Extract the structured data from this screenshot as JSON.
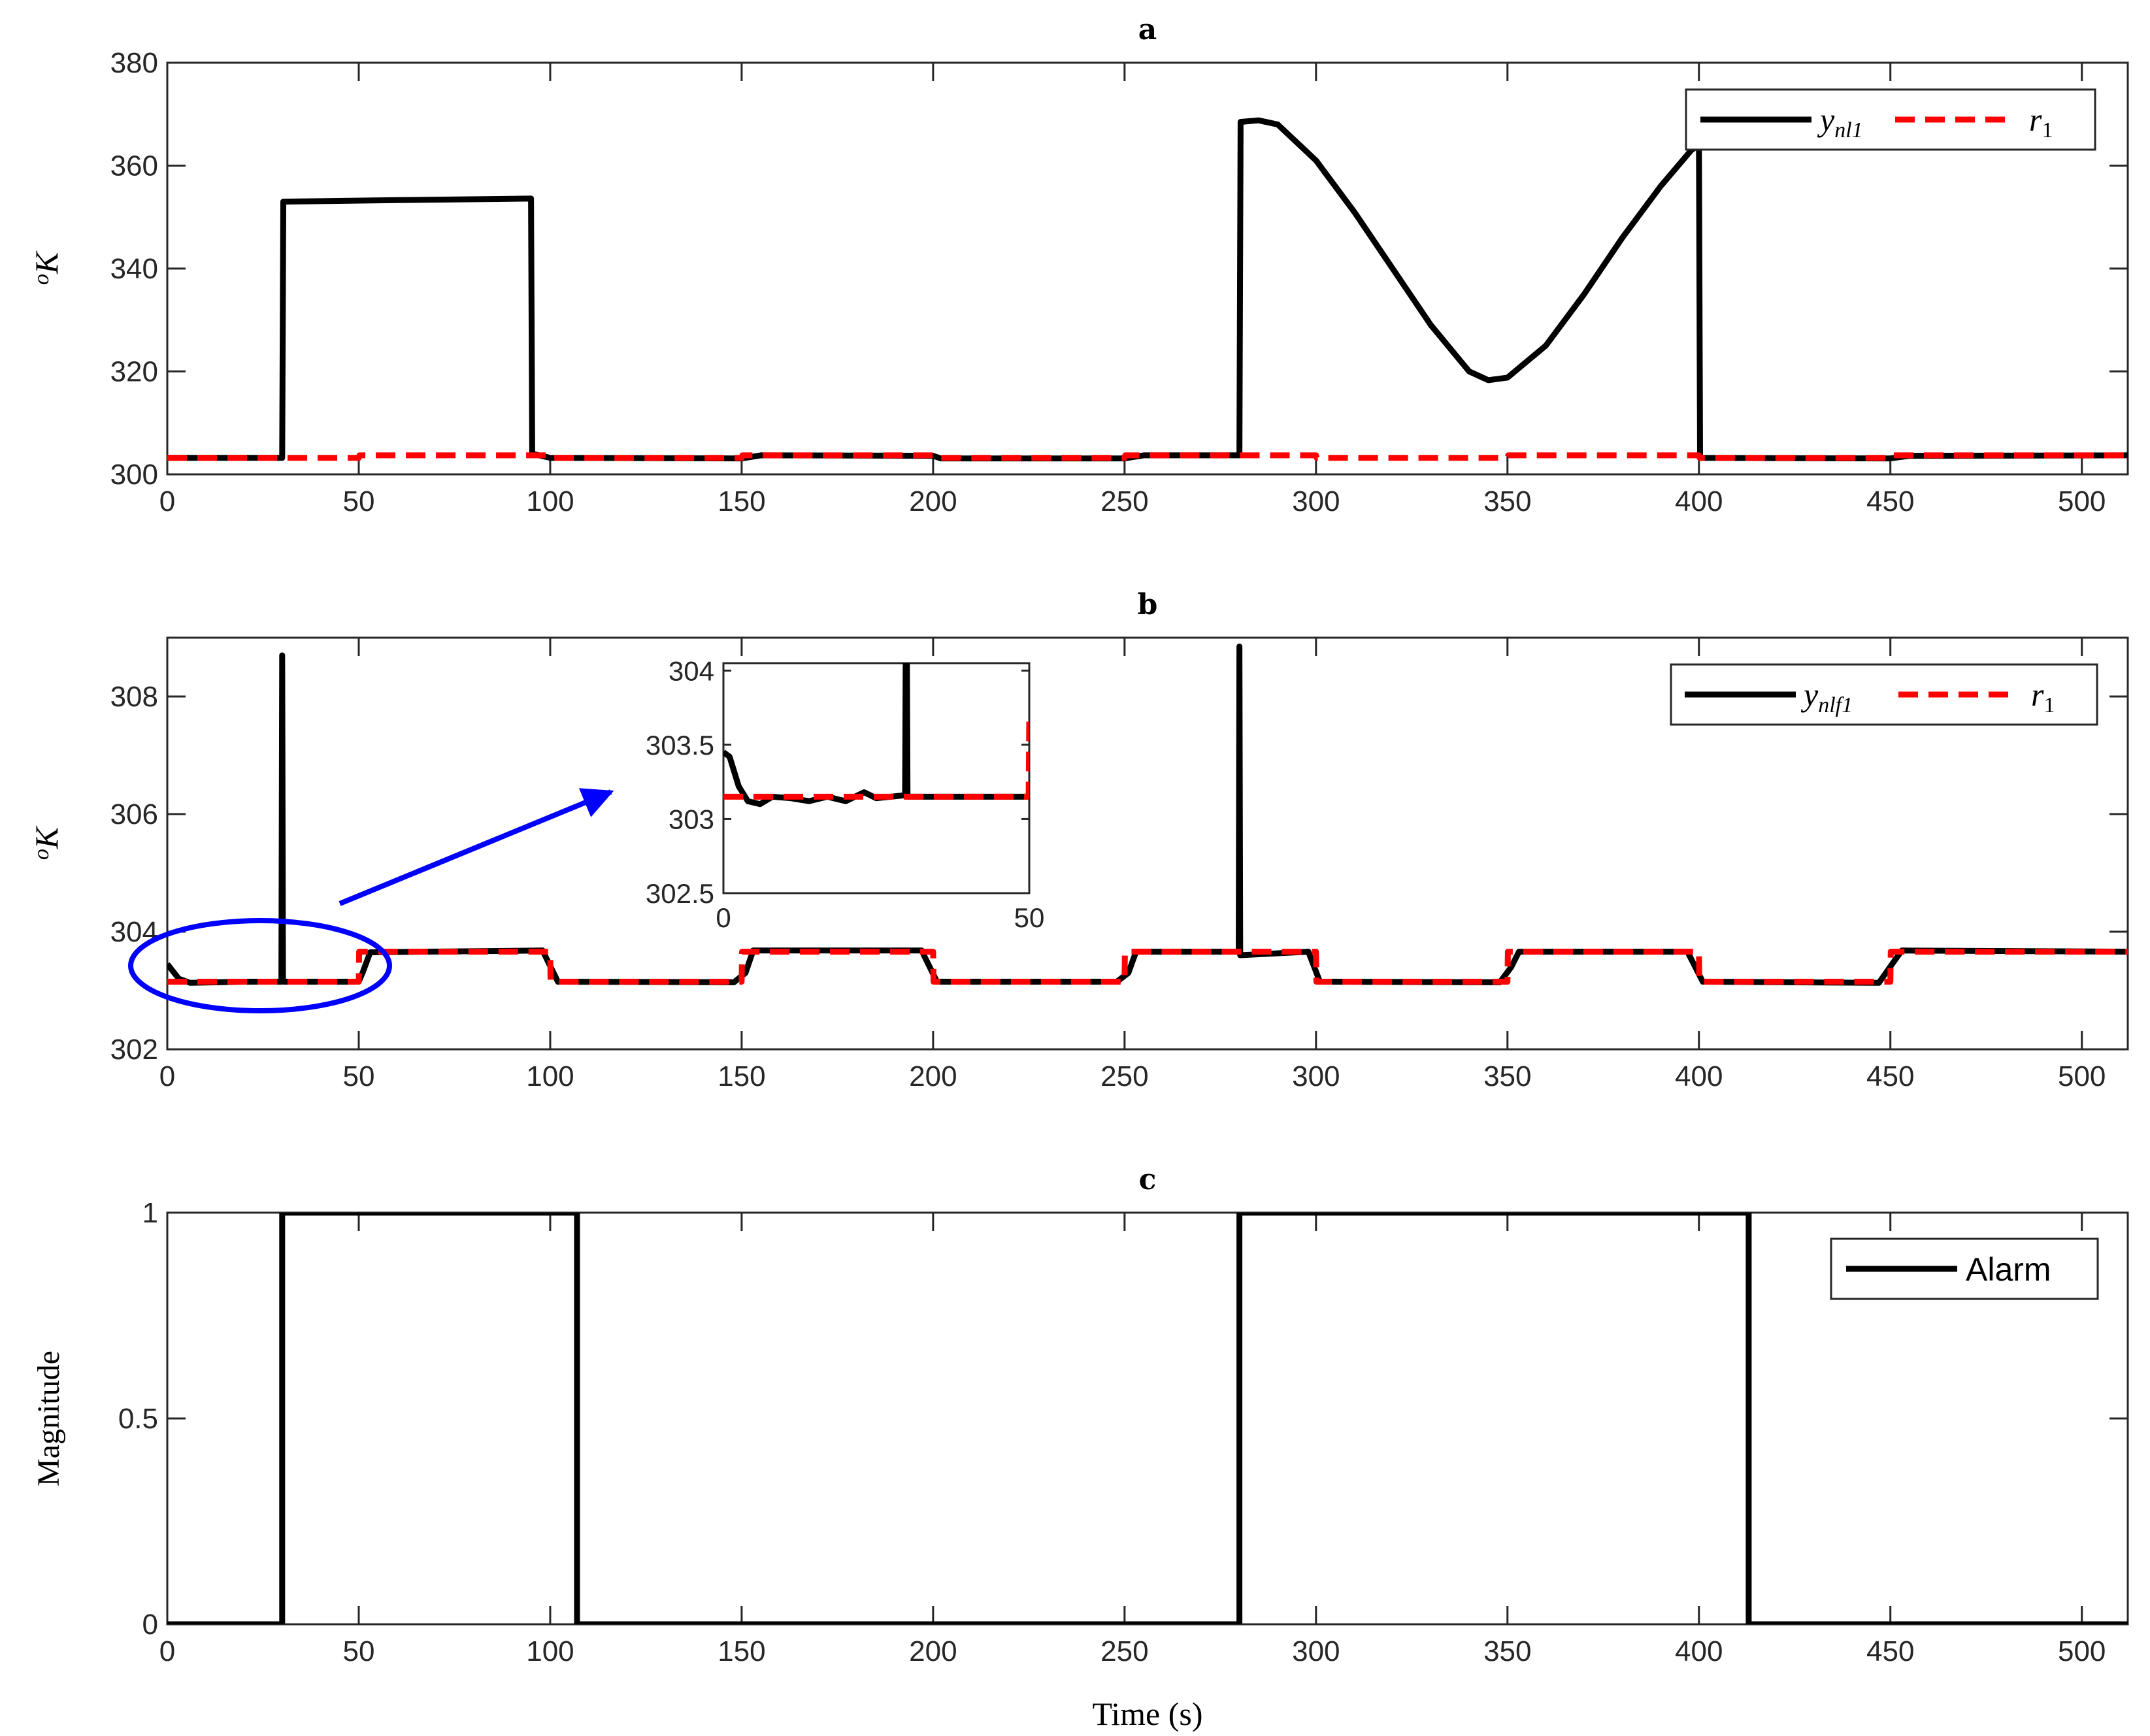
{
  "chart_data": [
    {
      "type": "line",
      "title": "a",
      "xlabel": "",
      "ylabel": "oK",
      "xlim": [
        0,
        512
      ],
      "ylim": [
        300,
        380
      ],
      "xticks": [
        "0",
        "50",
        "100",
        "150",
        "200",
        "250",
        "300",
        "350",
        "400",
        "450",
        "500"
      ],
      "yticks": [
        "300",
        "320",
        "340",
        "360",
        "380"
      ],
      "legend_position": "top-right",
      "series": [
        {
          "name": "y_nl1",
          "color": "#000000",
          "style": "solid",
          "points": [
            [
              0,
              303.2
            ],
            [
              30,
              303.2
            ],
            [
              30.3,
              353
            ],
            [
              60,
              353.3
            ],
            [
              95,
              353.6
            ],
            [
              95.3,
              304
            ],
            [
              100,
              303.2
            ],
            [
              150,
              303.1
            ],
            [
              155,
              303.7
            ],
            [
              200,
              303.6
            ],
            [
              202,
              303.1
            ],
            [
              250,
              303.1
            ],
            [
              255,
              303.7
            ],
            [
              280,
              303.7
            ],
            [
              280.3,
              368.5
            ],
            [
              285,
              368.8
            ],
            [
              290,
              368
            ],
            [
              300,
              361
            ],
            [
              310,
              351
            ],
            [
              320,
              340
            ],
            [
              330,
              329
            ],
            [
              340,
              320
            ],
            [
              345,
              318.3
            ],
            [
              350,
              318.8
            ],
            [
              360,
              325
            ],
            [
              370,
              335
            ],
            [
              380,
              346
            ],
            [
              390,
              356
            ],
            [
              398,
              363
            ],
            [
              400,
              364
            ],
            [
              400.3,
              303.2
            ],
            [
              450,
              303.1
            ],
            [
              455,
              303.6
            ],
            [
              512,
              303.7
            ]
          ]
        },
        {
          "name": "r_1",
          "color": "#ff0000",
          "style": "dashed",
          "points": [
            [
              0,
              303.2
            ],
            [
              50,
              303.2
            ],
            [
              50.2,
              303.7
            ],
            [
              100,
              303.7
            ],
            [
              100.2,
              303.2
            ],
            [
              150,
              303.2
            ],
            [
              150.2,
              303.7
            ],
            [
              200,
              303.7
            ],
            [
              200.2,
              303.2
            ],
            [
              250,
              303.2
            ],
            [
              250.2,
              303.7
            ],
            [
              300,
              303.7
            ],
            [
              300.2,
              303.2
            ],
            [
              350,
              303.2
            ],
            [
              350.2,
              303.7
            ],
            [
              400,
              303.7
            ],
            [
              400.2,
              303.2
            ],
            [
              450,
              303.2
            ],
            [
              450.2,
              303.7
            ],
            [
              512,
              303.7
            ]
          ]
        }
      ]
    },
    {
      "type": "line",
      "title": "b",
      "xlabel": "",
      "ylabel": "oK",
      "xlim": [
        0,
        512
      ],
      "ylim": [
        302,
        309
      ],
      "xticks": [
        "0",
        "50",
        "100",
        "150",
        "200",
        "250",
        "300",
        "350",
        "400",
        "450",
        "500"
      ],
      "yticks": [
        "302",
        "304",
        "306",
        "308"
      ],
      "legend_position": "top-right",
      "series": [
        {
          "name": "y_nlf1",
          "color": "#000000",
          "style": "solid",
          "points": [
            [
              0,
              303.45
            ],
            [
              3,
              303.2
            ],
            [
              6,
              303.13
            ],
            [
              20,
              303.15
            ],
            [
              29.8,
              303.15
            ],
            [
              30,
              308.7
            ],
            [
              30.2,
              303.15
            ],
            [
              50,
              303.15
            ],
            [
              51,
              303.3
            ],
            [
              53,
              303.65
            ],
            [
              98,
              303.68
            ],
            [
              102,
              303.15
            ],
            [
              148,
              303.14
            ],
            [
              151,
              303.3
            ],
            [
              153,
              303.68
            ],
            [
              197,
              303.68
            ],
            [
              201,
              303.15
            ],
            [
              248,
              303.15
            ],
            [
              251,
              303.3
            ],
            [
              253,
              303.66
            ],
            [
              279.8,
              303.66
            ],
            [
              280,
              308.85
            ],
            [
              280.2,
              303.6
            ],
            [
              298,
              303.66
            ],
            [
              301,
              303.15
            ],
            [
              348,
              303.14
            ],
            [
              351,
              303.4
            ],
            [
              353,
              303.66
            ],
            [
              397,
              303.66
            ],
            [
              401,
              303.15
            ],
            [
              447,
              303.13
            ],
            [
              451,
              303.5
            ],
            [
              453,
              303.68
            ],
            [
              512,
              303.66
            ]
          ]
        },
        {
          "name": "r_1",
          "color": "#ff0000",
          "style": "dashed",
          "points": [
            [
              0,
              303.15
            ],
            [
              50,
              303.15
            ],
            [
              50.1,
              303.66
            ],
            [
              100,
              303.66
            ],
            [
              100.1,
              303.15
            ],
            [
              150,
              303.15
            ],
            [
              150.1,
              303.66
            ],
            [
              200,
              303.66
            ],
            [
              200.1,
              303.15
            ],
            [
              250,
              303.15
            ],
            [
              250.1,
              303.66
            ],
            [
              300,
              303.66
            ],
            [
              300.1,
              303.15
            ],
            [
              350,
              303.15
            ],
            [
              350.1,
              303.66
            ],
            [
              400,
              303.66
            ],
            [
              400.1,
              303.15
            ],
            [
              450,
              303.15
            ],
            [
              450.1,
              303.66
            ],
            [
              512,
              303.66
            ]
          ]
        }
      ],
      "inset": {
        "xlim": [
          0,
          50
        ],
        "ylim": [
          302.5,
          304.05
        ],
        "xticks": [
          "0",
          "50"
        ],
        "yticks": [
          "302.5",
          "303",
          "303.5",
          "304"
        ],
        "series": [
          {
            "name": "y_nlf1",
            "color": "#000000",
            "style": "solid",
            "points": [
              [
                0,
                303.45
              ],
              [
                1,
                303.42
              ],
              [
                2.5,
                303.22
              ],
              [
                4,
                303.12
              ],
              [
                6,
                303.1
              ],
              [
                8,
                303.15
              ],
              [
                11,
                303.14
              ],
              [
                14,
                303.12
              ],
              [
                17,
                303.15
              ],
              [
                20,
                303.12
              ],
              [
                23,
                303.18
              ],
              [
                25,
                303.14
              ],
              [
                29.7,
                303.16
              ],
              [
                29.8,
                304.05
              ],
              [
                30,
                304.05
              ],
              [
                30.1,
                303.15
              ],
              [
                50,
                303.15
              ]
            ]
          },
          {
            "name": "r_1",
            "color": "#ff0000",
            "style": "dashed",
            "points": [
              [
                0,
                303.15
              ],
              [
                49.9,
                303.15
              ],
              [
                50,
                303.66
              ]
            ]
          }
        ]
      }
    },
    {
      "type": "line",
      "title": "c",
      "xlabel": "Time (s)",
      "ylabel": "Magnitude",
      "xlim": [
        0,
        512
      ],
      "ylim": [
        0,
        1
      ],
      "xticks": [
        "0",
        "50",
        "100",
        "150",
        "200",
        "250",
        "300",
        "350",
        "400",
        "450",
        "500"
      ],
      "yticks": [
        "0",
        "0.5",
        "1"
      ],
      "legend_position": "top-right",
      "series": [
        {
          "name": "Alarm",
          "color": "#000000",
          "style": "solid",
          "points": [
            [
              0,
              0
            ],
            [
              30,
              0
            ],
            [
              30,
              1
            ],
            [
              107,
              1
            ],
            [
              107,
              0
            ],
            [
              280,
              0
            ],
            [
              280,
              1
            ],
            [
              413,
              1
            ],
            [
              413,
              0
            ],
            [
              512,
              0
            ]
          ]
        }
      ]
    }
  ],
  "annotation": {
    "callout_color": "#0000ff"
  }
}
